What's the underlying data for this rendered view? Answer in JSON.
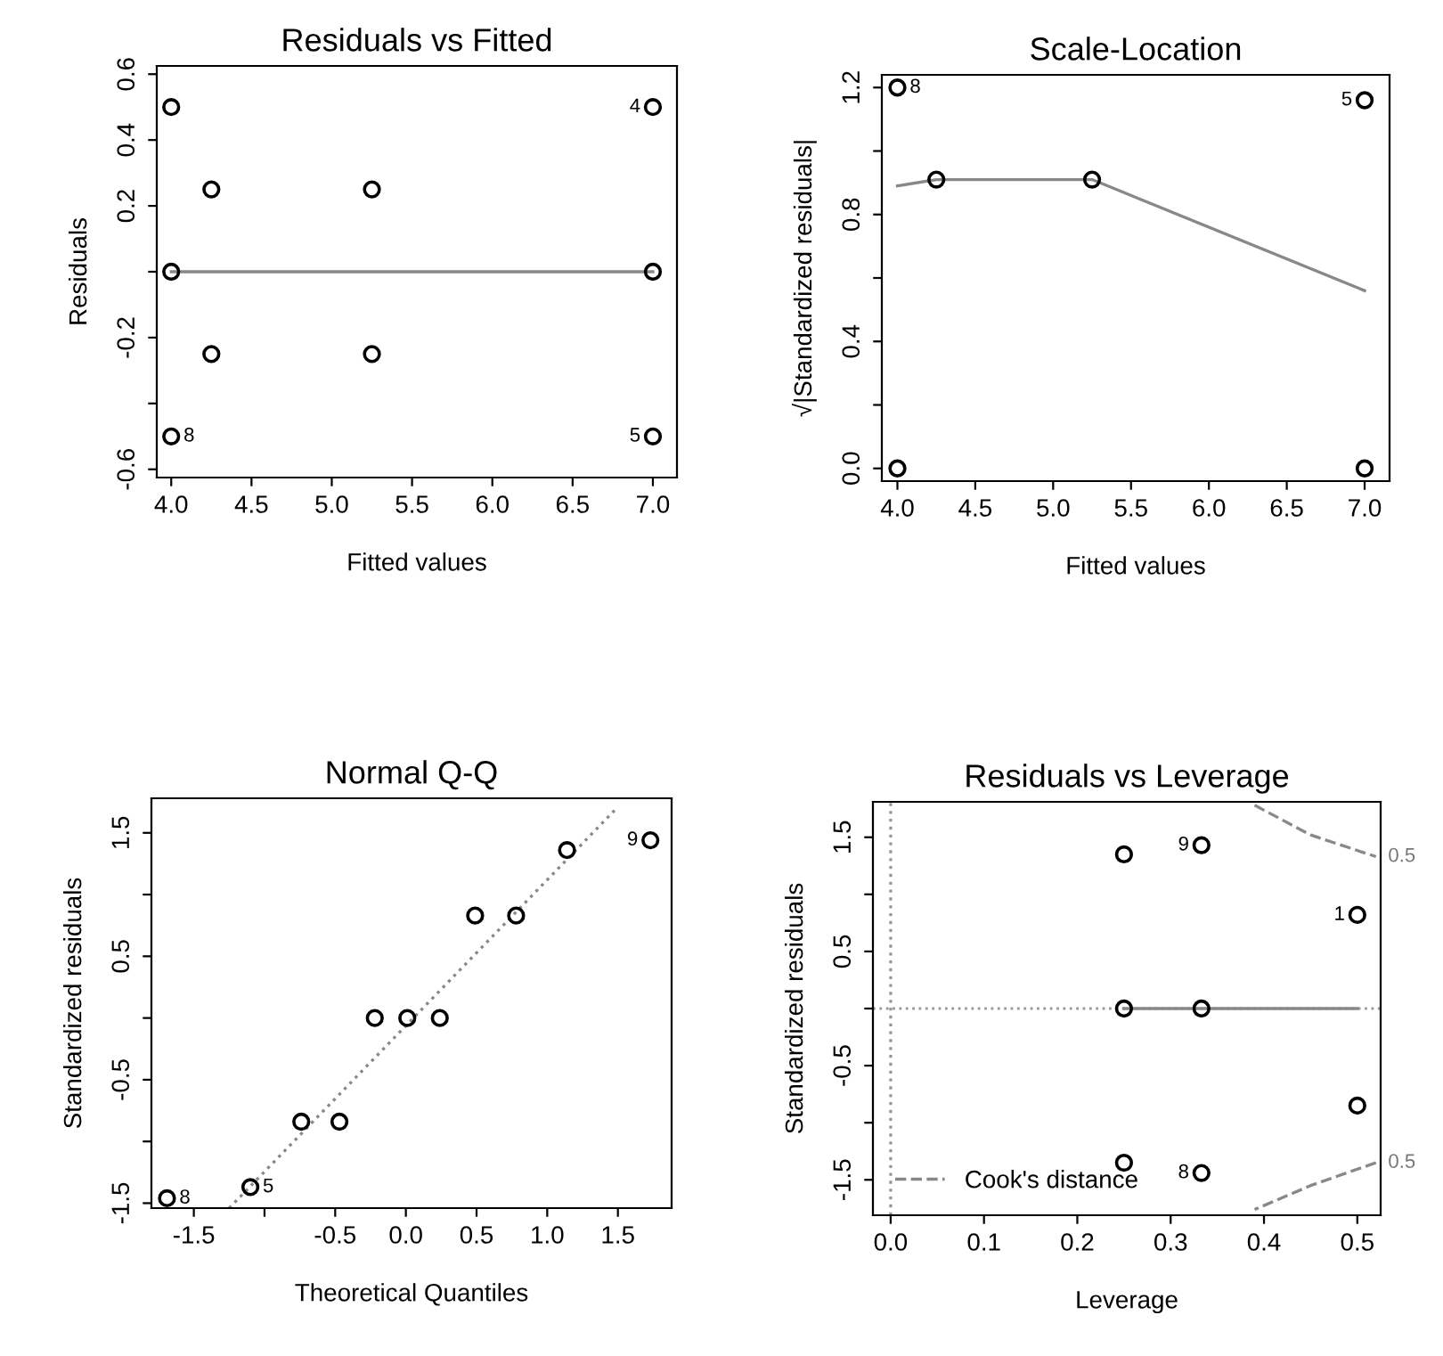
{
  "chart_data": [
    {
      "type": "scatter",
      "title": "Residuals vs Fitted",
      "xlabel": "Fitted values",
      "ylabel": "Residuals",
      "grid": false,
      "xlim": [
        3.91,
        7.15
      ],
      "xticks": [
        {
          "value": 4,
          "label": "4.0"
        },
        4.5,
        {
          "value": 5,
          "label": "5.0"
        },
        5.5,
        {
          "value": 6,
          "label": "6.0"
        },
        6.5,
        {
          "value": 7,
          "label": "7.0"
        }
      ],
      "ylim": [
        -0.625,
        0.625
      ],
      "yticks": [
        -0.6,
        {
          "value": -0.4,
          "label": null
        },
        -0.2,
        {
          "value": 0,
          "label": null
        },
        0.2,
        0.4,
        0.6
      ],
      "series": [
        {
          "marker": "circle",
          "color": "#000000",
          "x": [
            4.0,
            7.0,
            4.25,
            5.25,
            4.0,
            7.0,
            4.25,
            5.25,
            4.0,
            7.0
          ],
          "values": [
            0.5,
            0.5,
            0.25,
            0.25,
            0.0,
            0.0,
            -0.25,
            -0.25,
            -0.5,
            -0.5
          ]
        },
        {
          "type": "line",
          "color": "#888888",
          "line_style": "solid",
          "x": [
            4.0,
            7.0
          ],
          "values": [
            0.0,
            0.0
          ]
        }
      ],
      "annotations": [
        {
          "text": "4",
          "x": 7.0,
          "y": 0.5
        },
        {
          "text": "8",
          "x": 4.0,
          "y": -0.5
        },
        {
          "text": "5",
          "x": 7.0,
          "y": -0.5
        }
      ]
    },
    {
      "type": "scatter",
      "title": "Scale-Location",
      "xlabel": "Fitted values",
      "ylabel": "√|Standardized residuals|",
      "grid": false,
      "xlim": [
        3.9,
        7.16
      ],
      "xticks": [
        {
          "value": 4,
          "label": "4.0"
        },
        4.5,
        {
          "value": 5,
          "label": "5.0"
        },
        5.5,
        {
          "value": 6,
          "label": "6.0"
        },
        6.5,
        {
          "value": 7,
          "label": "7.0"
        }
      ],
      "ylim": [
        -0.04,
        1.24
      ],
      "yticks": [
        {
          "value": 0,
          "label": "0.0"
        },
        {
          "value": 0.2,
          "label": null
        },
        0.4,
        {
          "value": 0.6,
          "label": null
        },
        0.8,
        {
          "value": 1.0,
          "label": null
        },
        1.2
      ],
      "series": [
        {
          "marker": "circle",
          "color": "#000000",
          "x": [
            4.0,
            4.0,
            4.25,
            5.25,
            7.0,
            7.0
          ],
          "values": [
            1.2,
            0.0,
            0.91,
            0.91,
            1.16,
            0.0
          ]
        },
        {
          "type": "line",
          "color": "#888888",
          "line_style": "solid",
          "x": [
            4.0,
            4.25,
            5.25,
            7.0
          ],
          "values": [
            0.89,
            0.91,
            0.91,
            0.56
          ]
        }
      ],
      "annotations": [
        {
          "text": "8",
          "x": 4.0,
          "y": 1.2
        },
        {
          "text": "5",
          "x": 7.0,
          "y": 1.16
        }
      ]
    },
    {
      "type": "scatter",
      "title": "Normal Q-Q",
      "xlabel": "Theoretical Quantiles",
      "ylabel": "Standardized residuals",
      "grid": false,
      "xlim": [
        -1.8,
        1.88
      ],
      "xticks": [
        -1.5,
        {
          "value": -1.0,
          "label": null
        },
        -0.5,
        {
          "value": 0,
          "label": "0.0"
        },
        0.5,
        {
          "value": 1,
          "label": "1.0"
        },
        1.5
      ],
      "ylim": [
        -1.54,
        1.78
      ],
      "yticks": [
        -1.5,
        {
          "value": -1.0,
          "label": null
        },
        -0.5,
        {
          "value": 0,
          "label": null
        },
        0.5,
        {
          "value": 1.0,
          "label": null
        },
        1.5
      ],
      "series": [
        {
          "marker": "circle",
          "color": "#000000",
          "x": [
            -1.69,
            -1.1,
            -0.74,
            -0.47,
            -0.22,
            0.01,
            0.24,
            0.49,
            0.78,
            1.14,
            1.73
          ],
          "values": [
            -1.46,
            -1.37,
            -0.84,
            -0.84,
            0.0,
            0.0,
            0.0,
            0.83,
            0.83,
            1.36,
            1.44
          ]
        },
        {
          "type": "line",
          "color": "#888888",
          "line_style": "dotted",
          "x": [
            -1.25,
            1.5
          ],
          "values": [
            -1.54,
            1.71
          ]
        }
      ],
      "annotations": [
        {
          "text": "8",
          "x": -1.69,
          "y": -1.46
        },
        {
          "text": "5",
          "x": -1.1,
          "y": -1.37
        },
        {
          "text": "9",
          "x": 1.73,
          "y": 1.44
        }
      ]
    },
    {
      "type": "scatter",
      "title": "Residuals vs Leverage",
      "xlabel": "Leverage",
      "ylabel": "Standardized residuals",
      "grid": false,
      "legend": "bottom left",
      "xlim": [
        -0.019,
        0.525
      ],
      "xticks": [
        {
          "value": 0,
          "label": "0.0"
        },
        0.1,
        0.2,
        0.3,
        0.4,
        0.5
      ],
      "ylim": [
        -1.81,
        1.81
      ],
      "yticks": [
        -1.5,
        {
          "value": -1.0,
          "label": null
        },
        -0.5,
        {
          "value": 0,
          "label": null
        },
        0.5,
        {
          "value": 1.0,
          "label": null
        },
        1.5
      ],
      "series": [
        {
          "marker": "circle",
          "color": "#000000",
          "x": [
            0.25,
            0.333,
            0.5,
            0.25,
            0.333,
            0.5,
            0.25,
            0.333
          ],
          "values": [
            1.35,
            1.43,
            0.82,
            0.0,
            0.0,
            -0.85,
            -1.35,
            -1.44
          ]
        },
        {
          "type": "line",
          "color": "#888888",
          "line_style": "solid",
          "x": [
            0.25,
            0.333,
            0.5
          ],
          "values": [
            0.0,
            0.0,
            0.0
          ]
        },
        {
          "type": "line",
          "color": "#999999",
          "line_style": "dotted",
          "x": [
            0.0,
            0.0
          ],
          "values": [
            -1.81,
            1.81
          ]
        },
        {
          "type": "line",
          "name": "Cook's distance",
          "color": "#888888",
          "line_style": "dashed",
          "x": [
            0.39,
            0.45,
            0.52,
            null,
            0.52,
            0.45,
            0.39
          ],
          "values": [
            1.78,
            1.52,
            1.33,
            null,
            -1.35,
            -1.55,
            -1.76
          ]
        }
      ],
      "ref_lines": [
        {
          "axis": "y",
          "value": 0,
          "color": "#999999",
          "line_style": "dotted"
        }
      ],
      "annotations": [
        {
          "text": "9",
          "x": 0.333,
          "y": 1.43
        },
        {
          "text": "1",
          "x": 0.5,
          "y": 0.82
        },
        {
          "text": "8",
          "x": 0.333,
          "y": -1.44
        },
        "0.5",
        "0.5"
      ]
    }
  ]
}
